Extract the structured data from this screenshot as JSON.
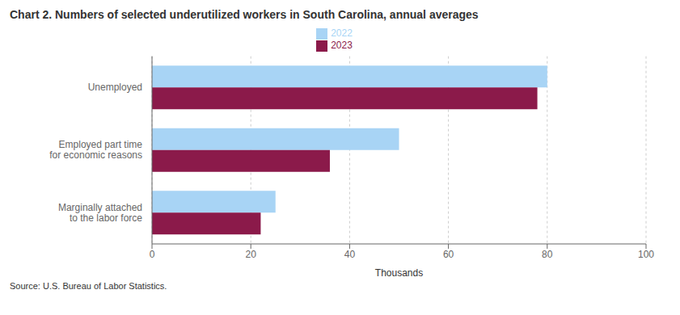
{
  "chart_data": {
    "type": "bar",
    "orientation": "horizontal",
    "title": "Chart 2. Numbers of selected underutilized workers in South Carolina, annual averages",
    "categories": [
      "Unemployed",
      "Employed part time\nfor economic reasons",
      "Marginally attached\nto the labor force"
    ],
    "series": [
      {
        "name": "2022",
        "color": "#a8d4f5",
        "values": [
          80,
          50,
          25
        ]
      },
      {
        "name": "2023",
        "color": "#8b1a4a",
        "values": [
          78,
          36,
          22
        ]
      }
    ],
    "xlim": [
      0,
      100
    ],
    "xticks": [
      0,
      20,
      40,
      60,
      80,
      100
    ],
    "xlabel": "Thousands",
    "grid": true,
    "legend": "top",
    "source": "Source: U.S. Bureau of Labor Statistics."
  }
}
